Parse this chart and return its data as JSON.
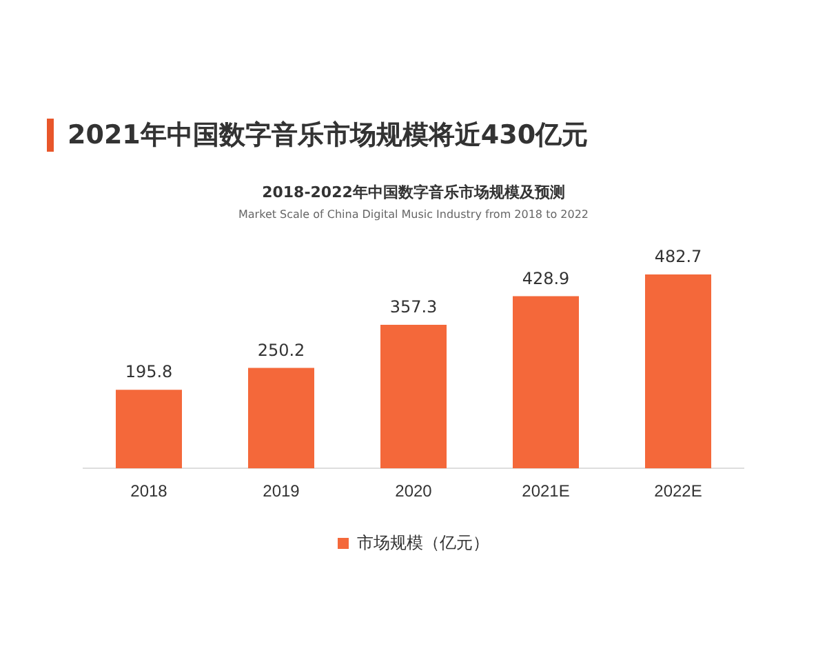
{
  "chart_data": {
    "type": "bar",
    "title": "2021年中国数字音乐市场规模将近430亿元",
    "subtitle": "2018-2022年中国数字音乐市场规模及预测",
    "annotations": [
      "Market Scale of China Digital Music Industry from 2018 to 2022"
    ],
    "categories": [
      "2018",
      "2019",
      "2020",
      "2021E",
      "2022E"
    ],
    "series": [
      {
        "name": "市场规模（亿元）",
        "color": "#f4683a",
        "values": [
          195.8,
          250.2,
          357.3,
          428.9,
          482.7
        ]
      }
    ],
    "data_labels": true,
    "grid": false,
    "legend": "bottom"
  }
}
